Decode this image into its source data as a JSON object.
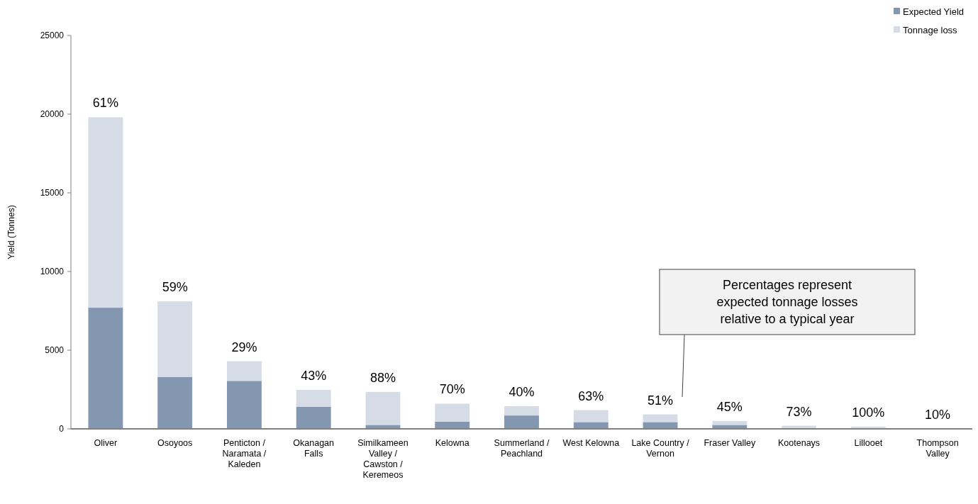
{
  "chart_data": {
    "type": "bar",
    "stacked": true,
    "ylabel": "Yield (Tonnes)",
    "categories": [
      "Oliver",
      "Osoyoos",
      "Penticton / Naramata / Kaleden",
      "Okanagan Falls",
      "Similkameen Valley / Cawston / Keremeos",
      "Kelowna",
      "Summerland / Peachland",
      "West Kelowna",
      "Lake Country / Vernon",
      "Fraser Valley",
      "Kootenays",
      "Lillooet",
      "Thompson Valley"
    ],
    "series": [
      {
        "name": "Expected Yield",
        "color": "#8497b0",
        "values": [
          7700,
          3300,
          3050,
          1400,
          250,
          450,
          850,
          430,
          430,
          250,
          50,
          0,
          20
        ]
      },
      {
        "name": "Tonnage loss",
        "color": "#d6dce5",
        "values": [
          12100,
          4800,
          1250,
          1080,
          2100,
          1150,
          590,
          760,
          490,
          250,
          150,
          150,
          0
        ]
      }
    ],
    "ylim": [
      0,
      25000
    ],
    "yticks": [
      0,
      5000,
      10000,
      15000,
      20000,
      25000
    ],
    "grid": false,
    "legend": "top right",
    "annotations": [
      {
        "text": "61%",
        "x": "Oliver",
        "y": 19800
      },
      {
        "text": "59%",
        "x": "Osoyoos",
        "y": 8100
      },
      {
        "text": "29%",
        "x": "Penticton / Naramata / Kaleden",
        "y": 4300
      },
      {
        "text": "43%",
        "x": "Okanagan Falls",
        "y": 2480
      },
      {
        "text": "88%",
        "x": "Similkameen Valley / Cawston / Keremeos",
        "y": 2350
      },
      {
        "text": "70%",
        "x": "Kelowna",
        "y": 1600
      },
      {
        "text": "40%",
        "x": "Summerland / Peachland",
        "y": 1440
      },
      {
        "text": "63%",
        "x": "West Kelowna",
        "y": 1190
      },
      {
        "text": "51%",
        "x": "Lake Country / Vernon",
        "y": 920
      },
      {
        "text": "45%",
        "x": "Fraser Valley",
        "y": 500
      },
      {
        "text": "73%",
        "x": "Kootenays",
        "y": 200
      },
      {
        "text": "100%",
        "x": "Lillooet",
        "y": 150
      },
      {
        "text": "10%",
        "x": "Thompson Valley",
        "y": 20
      },
      "Percentages represent expected tonnage losses relative to a typical year"
    ]
  }
}
